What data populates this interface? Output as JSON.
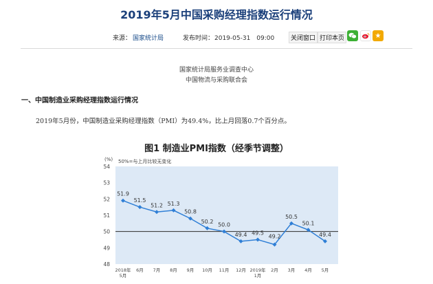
{
  "article": {
    "title": "2019年5月中国采购经理指数运行情况",
    "source_label": "来源：",
    "source_name": "国家统计局",
    "date_label": "发布时间：",
    "date_value": "2019-05-31　09:00",
    "close_label": "关闭窗口",
    "print_label": "打印本页",
    "org_line1": "国家统计局服务业调查中心",
    "org_line2": "中国物流与采购联合会",
    "section_heading": "一、中国制造业采购经理指数运行情况",
    "paragraph": "2019年5月份，中国制造业采购经理指数（PMI）为49.4%，比上月回落0.7个百分点。"
  },
  "share": {
    "wechat_icon": "wechat-icon",
    "weibo_icon": "weibo-icon",
    "favorite_icon": "star-icon"
  },
  "colors": {
    "title": "#1a3f7a",
    "link": "#1a4c8a",
    "chart_bg": "#dde9f6",
    "series": "#2f7fd6"
  },
  "chart_data": {
    "type": "line",
    "title": "图1  制造业PMI指数（经季节调整）",
    "ylabel": "(%)",
    "note": "50%=与上月比较无变化",
    "ylim": [
      48,
      54
    ],
    "yticks": [
      48,
      49,
      50,
      51,
      52,
      53,
      54
    ],
    "categories": [
      "2018年\n5月",
      "6月",
      "7月",
      "8月",
      "9月",
      "10月",
      "11月",
      "12月",
      "2019年\n1月",
      "2月",
      "3月",
      "4月",
      "5月"
    ],
    "values": [
      51.9,
      51.5,
      51.2,
      51.3,
      50.8,
      50.2,
      50.0,
      49.4,
      49.5,
      49.2,
      50.5,
      50.1,
      49.4
    ],
    "labels": [
      "51.9",
      "51.5",
      "51.2",
      "51.3",
      "50.8",
      "50.2",
      "50.0",
      "49.4",
      "49.5",
      "49.2",
      "50.5",
      "50.1",
      "49.4"
    ],
    "reference_line": 50,
    "grid": false
  }
}
